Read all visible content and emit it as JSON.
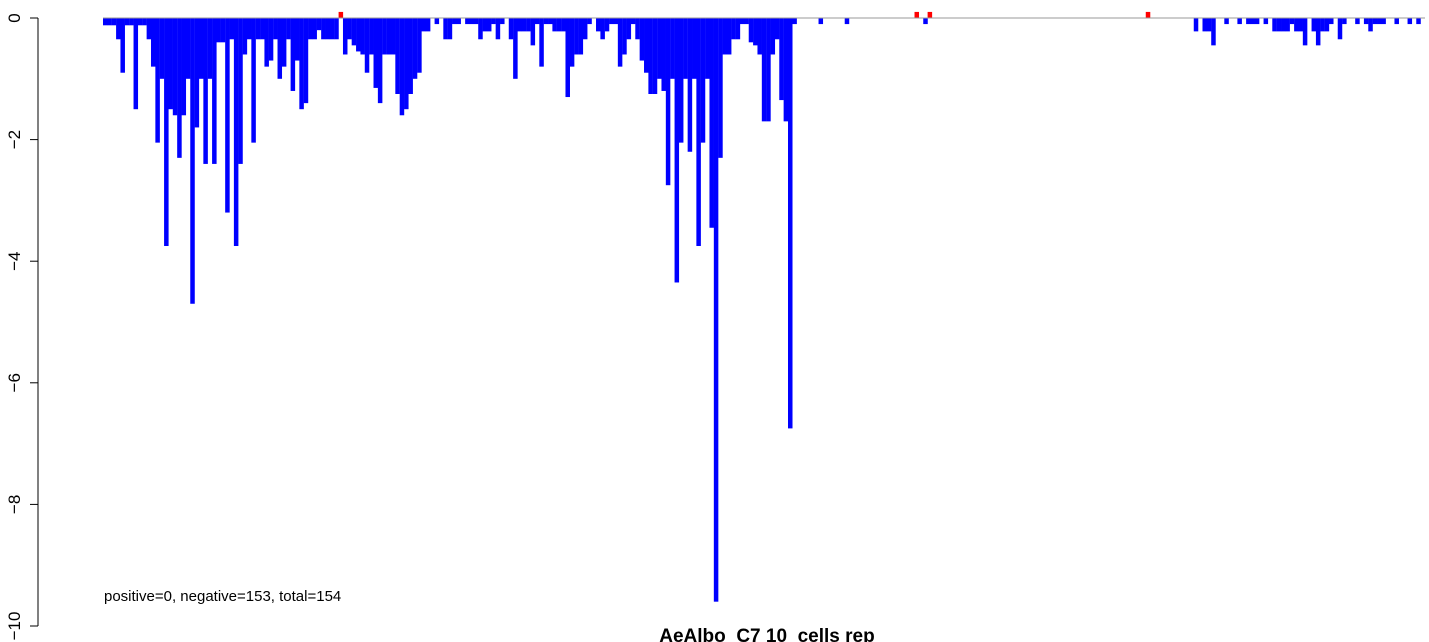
{
  "chart_data": {
    "type": "bar",
    "title": "AeAlbo_C7 10_cells rep",
    "annotation": "positive=0, negative=153, total=154",
    "xlabel": "",
    "ylabel": "",
    "ylim": [
      -10,
      0
    ],
    "yticks": [
      "0",
      "−2",
      "−4",
      "−6",
      "−8",
      "−10"
    ],
    "ytick_values": [
      0,
      -2,
      -4,
      -6,
      -8,
      -10
    ],
    "grid": false,
    "legend": "none",
    "colors": {
      "negative": "#0000ff",
      "positive": "#ff0000",
      "baseline": "#999999"
    },
    "bar_count": 309,
    "values": [
      -0.12,
      -0.12,
      -0.12,
      -0.35,
      -0.9,
      -0.12,
      -0.12,
      -1.5,
      -0.12,
      -0.12,
      -0.35,
      -0.8,
      -2.05,
      -1.0,
      -3.75,
      -1.5,
      -1.6,
      -2.3,
      -1.6,
      -1.0,
      -4.7,
      -1.8,
      -1.0,
      -2.4,
      -1.0,
      -2.4,
      -0.4,
      -0.4,
      -3.2,
      -0.35,
      -3.75,
      -2.4,
      -0.6,
      -0.35,
      -2.05,
      -0.35,
      -0.35,
      -0.8,
      -0.7,
      -0.35,
      -1.0,
      -0.8,
      -0.35,
      -1.2,
      -0.7,
      -1.5,
      -1.4,
      -0.35,
      -0.35,
      -0.2,
      -0.35,
      -0.35,
      -0.35,
      -0.35,
      0.1,
      -0.6,
      -0.35,
      -0.45,
      -0.55,
      -0.6,
      -0.9,
      -0.6,
      -1.15,
      -1.4,
      -0.6,
      -0.6,
      -0.6,
      -1.25,
      -1.6,
      -1.5,
      -1.25,
      -1.0,
      -0.9,
      -0.22,
      -0.22,
      0.0,
      -0.1,
      0.0,
      -0.35,
      -0.35,
      -0.1,
      -0.1,
      0.0,
      -0.1,
      -0.1,
      -0.1,
      -0.35,
      -0.22,
      -0.22,
      -0.1,
      -0.35,
      -0.1,
      0.0,
      -0.35,
      -1.0,
      -0.22,
      -0.22,
      -0.22,
      -0.45,
      -0.1,
      -0.8,
      -0.1,
      -0.1,
      -0.22,
      -0.22,
      -0.22,
      -1.3,
      -0.8,
      -0.6,
      -0.6,
      -0.35,
      -0.1,
      0.0,
      -0.22,
      -0.35,
      -0.22,
      -0.1,
      -0.1,
      -0.8,
      -0.6,
      -0.35,
      -0.1,
      -0.35,
      -0.7,
      -0.9,
      -1.25,
      -1.25,
      -1.0,
      -1.2,
      -2.75,
      -1.0,
      -4.35,
      -2.05,
      -1.0,
      -2.2,
      -1.0,
      -3.75,
      -2.05,
      -1.0,
      -3.45,
      -9.6,
      -2.3,
      -0.6,
      -0.6,
      -0.35,
      -0.35,
      -0.1,
      -0.1,
      -0.4,
      -0.45,
      -0.6,
      -1.7,
      -1.7,
      -0.6,
      -0.35,
      -1.35,
      -1.7,
      -6.75,
      -0.1,
      0.0,
      0.0,
      0.0,
      0.0,
      0.0,
      -0.1,
      0.0,
      0.0,
      0.0,
      0.0,
      0.0,
      -0.1,
      0.0,
      0.0,
      0.0,
      0.0,
      0.0,
      0.0,
      0.0,
      0.0,
      0.0,
      0.0,
      0.0,
      0.0,
      0.0,
      0.0,
      0.0,
      0.1,
      0.0,
      -0.1,
      0.1,
      0.0,
      0.0,
      0.0,
      0.0,
      0.0,
      0.0,
      0.0,
      0.0,
      0.0,
      0.0,
      0.0,
      0.0,
      0.0,
      0.0,
      0.0,
      0.0,
      0.0,
      0.0,
      0.0,
      0.0,
      0.0,
      0.0,
      0.0,
      0.0,
      0.0,
      0.0,
      0.0,
      0.0,
      0.0,
      0.0,
      0.0,
      0.0,
      0.0,
      0.0,
      0.0,
      0.0,
      0.0,
      0.0,
      0.0,
      0.0,
      0.0,
      0.0,
      0.0,
      0.0,
      0.0,
      0.0,
      0.0,
      0.0,
      0.0,
      0.1,
      0.0,
      0.0,
      0.0,
      0.0,
      0.0,
      0.0,
      0.0,
      0.0,
      0.0,
      0.0,
      -0.22,
      0.0,
      -0.22,
      -0.22,
      -0.45,
      0.0,
      0.0,
      -0.1,
      0.0,
      0.0,
      -0.1,
      0.0,
      -0.1,
      -0.1,
      -0.1,
      0.0,
      -0.1,
      0.0,
      -0.22,
      -0.22,
      -0.22,
      -0.22,
      -0.1,
      -0.22,
      -0.22,
      -0.45,
      0.0,
      -0.22,
      -0.45,
      -0.22,
      -0.22,
      -0.1,
      0.0,
      -0.35,
      -0.1,
      0.0,
      0.0,
      -0.1,
      0.0,
      -0.1,
      -0.22,
      -0.1,
      -0.1,
      -0.1,
      0.0,
      0.0,
      -0.1,
      0.0,
      0.0,
      -0.1,
      0.0,
      -0.1,
      0.0
    ]
  }
}
